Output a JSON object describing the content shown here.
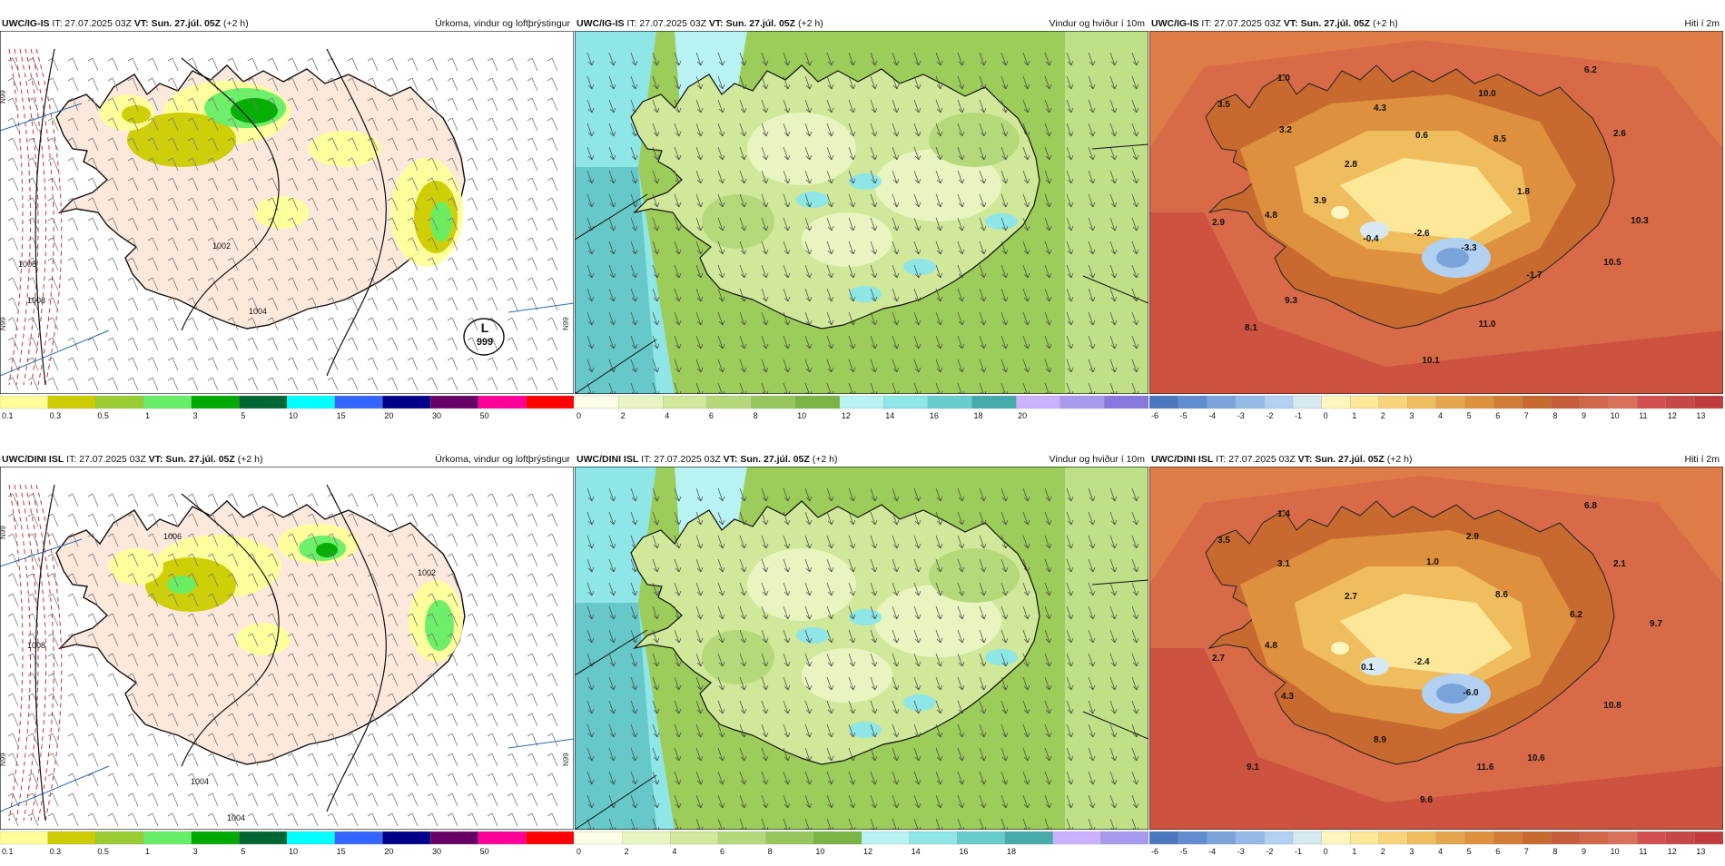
{
  "panels": [
    {
      "id": "p1",
      "model": "UWC/IG-IS",
      "it": "IT: 27.07.2025 03Z",
      "vt_label": "VT:",
      "vt": "Sun. 27.júl. 05Z",
      "lead": "(+2 h)",
      "title": "Úrkoma, vindur og loftþrýstingur",
      "kind": "precip",
      "pressure_labels": [
        "L",
        "999",
        "1004",
        "1002",
        "1008",
        "1006"
      ],
      "lat_labels": [
        "N99",
        "N99",
        "N99"
      ],
      "colorbar": {
        "colors": [
          "#ffff99",
          "#cccc00",
          "#99cc33",
          "#66ee66",
          "#00aa00",
          "#006633",
          "#00ffff",
          "#3366ff",
          "#000088",
          "#660066",
          "#ff0099",
          "#ff0000"
        ],
        "ticks": [
          "0.1",
          "0.3",
          "0.5",
          "1",
          "3",
          "5",
          "10",
          "15",
          "20",
          "30",
          "50"
        ]
      }
    },
    {
      "id": "p2",
      "model": "UWC/IG-IS",
      "it": "IT: 27.07.2025 03Z",
      "vt_label": "VT:",
      "vt": "Sun. 27.júl. 05Z",
      "lead": "(+2 h)",
      "title": "Vindur og hviður í 10m",
      "kind": "wind",
      "colorbar": {
        "colors": [
          "#fbfde6",
          "#e9f5c0",
          "#cfe89a",
          "#b5d97a",
          "#97c65c",
          "#7ab543",
          "#b8f2f2",
          "#8ee6e6",
          "#66cccc",
          "#44aaaa",
          "#cbb2ff",
          "#a899ee",
          "#8877dd"
        ],
        "ticks": [
          "0",
          "2",
          "4",
          "6",
          "8",
          "10",
          "12",
          "14",
          "16",
          "18",
          "20"
        ]
      }
    },
    {
      "id": "p3",
      "model": "UWC/IG-IS",
      "it": "IT: 27.07.2025 03Z",
      "vt_label": "VT:",
      "vt": "Sun. 27.júl. 05Z",
      "lead": "(+2 h)",
      "title": "Hiti í 2m",
      "kind": "temp",
      "values": [
        "1.0",
        "6.2",
        "3.5",
        "4.3",
        "10.0",
        "3.2",
        "0.6",
        "8.5",
        "2.6",
        "2.8",
        "1.8",
        "3.9",
        "4.8",
        "2.9",
        "-0.4",
        "-2.6",
        "-3.3",
        "10.3",
        "10.5",
        "-1.7",
        "9.3",
        "8.1",
        "11.0",
        "10.1"
      ],
      "colorbar": {
        "colors": [
          "#4a78c0",
          "#5f8dcf",
          "#7aa3dc",
          "#93b9e6",
          "#b2d0f0",
          "#d7e8f0",
          "#fff6bf",
          "#fde89a",
          "#f7d47a",
          "#efbd5e",
          "#e6a64b",
          "#de903e",
          "#d27b34",
          "#c86a2f",
          "#c75c3a",
          "#d06548",
          "#d8705a",
          "#d25050",
          "#c84646",
          "#c03c3c"
        ],
        "ticks": [
          "-6",
          "-5",
          "-4",
          "-3",
          "-2",
          "-1",
          "0",
          "1",
          "2",
          "3",
          "4",
          "5",
          "6",
          "7",
          "8",
          "9",
          "10",
          "11",
          "12",
          "13"
        ]
      }
    },
    {
      "id": "p4",
      "model": "UWC/DINI ISL",
      "it": "IT: 27.07.2025 03Z",
      "vt_label": "VT:",
      "vt": "Sun. 27.júl. 05Z",
      "lead": "(+2 h)",
      "title": "Úrkoma, vindur og loftþrýstingur",
      "kind": "precip",
      "pressure_labels": [
        "1006",
        "1004",
        "1002",
        "1008",
        "1004"
      ],
      "lat_labels": [
        "N99",
        "N99",
        "N99"
      ],
      "colorbar": {
        "colors": [
          "#ffff99",
          "#cccc00",
          "#99cc33",
          "#66ee66",
          "#00aa00",
          "#006633",
          "#00ffff",
          "#3366ff",
          "#000088",
          "#660066",
          "#ff0099",
          "#ff0000"
        ],
        "ticks": [
          "0.1",
          "0.3",
          "0.5",
          "1",
          "3",
          "5",
          "10",
          "15",
          "20",
          "30",
          "50"
        ]
      }
    },
    {
      "id": "p5",
      "model": "UWC/DINI ISL",
      "it": "IT: 27.07.2025 03Z",
      "vt_label": "VT:",
      "vt": "Sun. 27.júl. 05Z",
      "lead": "(+2 h)",
      "title": "Vindur og hviður í 10m",
      "kind": "wind",
      "colorbar": {
        "colors": [
          "#fbfde6",
          "#e9f5c0",
          "#cfe89a",
          "#b5d97a",
          "#97c65c",
          "#7ab543",
          "#b8f2f2",
          "#8ee6e6",
          "#66cccc",
          "#44aaaa",
          "#cbb2ff",
          "#a899ee"
        ],
        "ticks": [
          "0",
          "2",
          "4",
          "6",
          "8",
          "10",
          "12",
          "14",
          "16",
          "18"
        ]
      }
    },
    {
      "id": "p6",
      "model": "UWC/DINI ISL",
      "it": "IT: 27.07.2025 03Z",
      "vt_label": "VT:",
      "vt": "Sun. 27.júl. 05Z",
      "lead": "(+2 h)",
      "title": "Hiti í 2m",
      "kind": "temp",
      "values": [
        "1.4",
        "6.8",
        "3.5",
        "2.9",
        "3.1",
        "1.0",
        "2.1",
        "2.7",
        "8.6",
        "6.2",
        "9.7",
        "4.8",
        "2.7",
        "0.1",
        "-2.4",
        "-6.0",
        "4.3",
        "10.8",
        "8.9",
        "9.1",
        "11.6",
        "10.6",
        "9.6"
      ],
      "colorbar": {
        "colors": [
          "#4a78c0",
          "#5f8dcf",
          "#7aa3dc",
          "#93b9e6",
          "#b2d0f0",
          "#d7e8f0",
          "#fff6bf",
          "#fde89a",
          "#f7d47a",
          "#efbd5e",
          "#e6a64b",
          "#de903e",
          "#d27b34",
          "#c86a2f",
          "#c75c3a",
          "#d06548",
          "#d8705a",
          "#d25050",
          "#c84646",
          "#c03c3c"
        ],
        "ticks": [
          "-6",
          "-5",
          "-4",
          "-3",
          "-2",
          "-1",
          "0",
          "1",
          "2",
          "3",
          "4",
          "5",
          "6",
          "7",
          "8",
          "9",
          "10",
          "11",
          "12",
          "13"
        ]
      }
    }
  ]
}
